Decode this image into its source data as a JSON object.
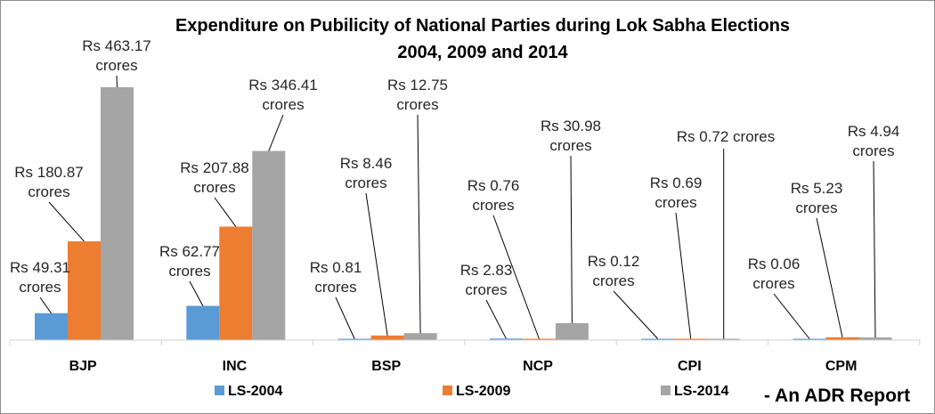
{
  "chart_data": {
    "type": "bar",
    "title_lines": [
      "Expenditure on Pubilicity of National Parties during Lok Sabha Elections",
      "2004, 2009 and 2014"
    ],
    "categories": [
      "BJP",
      "INC",
      "BSP",
      "NCP",
      "CPI",
      "CPM"
    ],
    "series": [
      {
        "name": "LS-2004",
        "color": "#5b9bd5",
        "values": [
          49.31,
          62.77,
          0.81,
          2.83,
          0.12,
          0.06
        ],
        "labels": [
          [
            "Rs 49.31",
            "crores"
          ],
          [
            "Rs 62.77",
            "crores"
          ],
          [
            "Rs 0.81",
            "crores"
          ],
          [
            "Rs 2.83",
            "crores"
          ],
          [
            "Rs 0.12",
            "crores"
          ],
          [
            "Rs 0.06",
            "crores"
          ]
        ]
      },
      {
        "name": "LS-2009",
        "color": "#ed7d31",
        "values": [
          180.87,
          207.88,
          8.46,
          0.76,
          0.69,
          5.23
        ],
        "labels": [
          [
            "Rs 180.87",
            "crores"
          ],
          [
            "Rs 207.88",
            "crores"
          ],
          [
            "Rs 8.46",
            "crores"
          ],
          [
            "Rs 0.76",
            "crores"
          ],
          [
            "Rs 0.69",
            "crores"
          ],
          [
            "Rs 5.23",
            "crores"
          ]
        ]
      },
      {
        "name": "LS-2014",
        "color": "#a5a5a5",
        "values": [
          463.17,
          346.41,
          12.75,
          30.98,
          0.72,
          4.94
        ],
        "labels": [
          [
            "Rs 463.17",
            "crores"
          ],
          [
            "Rs 346.41",
            "crores"
          ],
          [
            "Rs 12.75",
            "crores"
          ],
          [
            "Rs 30.98",
            "crores"
          ],
          [
            "Rs 0.72 crores"
          ],
          [
            "Rs 4.94",
            "crores"
          ]
        ]
      }
    ],
    "ylim": [
      0,
      465
    ],
    "grid": false,
    "legend_position": "bottom",
    "annotation": "- An ADR Report"
  }
}
